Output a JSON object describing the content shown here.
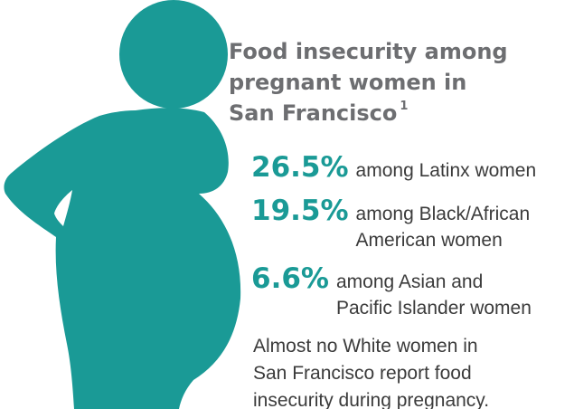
{
  "title": [
    "Food insecurity among",
    "pregnant women in",
    "San Francisco"
  ],
  "footnote_ref": "1",
  "stats": [
    {
      "value": "26.5%",
      "lines": [
        "among Latinx women"
      ]
    },
    {
      "value": "19.5%",
      "lines": [
        "among Black/African",
        "American women"
      ]
    },
    {
      "value": "6.6%",
      "lines": [
        "among Asian and",
        "Pacific Islander women"
      ]
    }
  ],
  "note": [
    "Almost no White women in",
    "San Francisco report food",
    "insecurity during pregnancy."
  ]
}
